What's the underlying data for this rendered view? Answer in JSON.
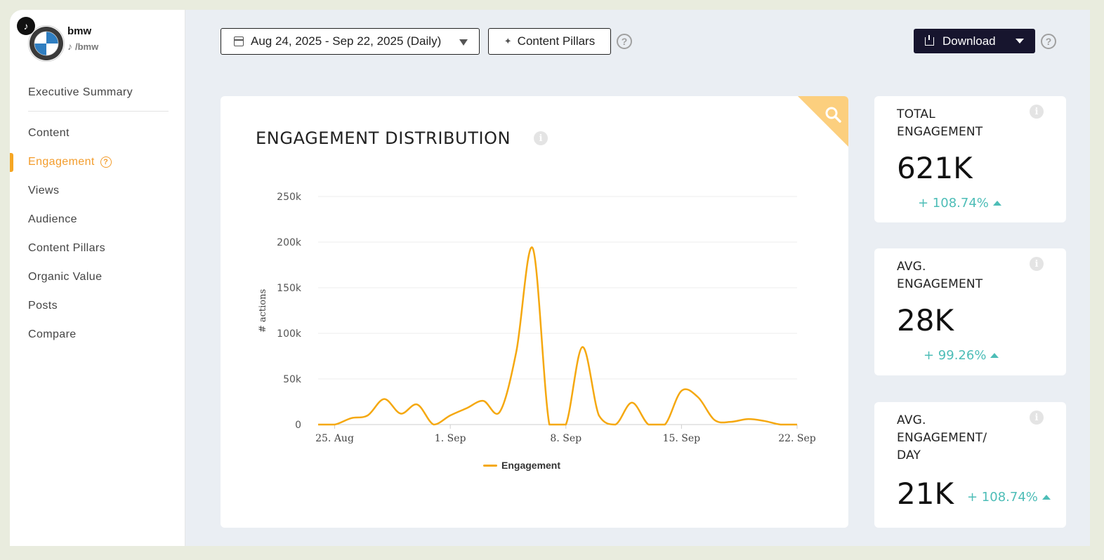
{
  "profile": {
    "name": "bmw",
    "handle": "/bmw",
    "platform_icon": "tiktok-icon"
  },
  "sidebar": {
    "items": [
      {
        "label": "Executive Summary"
      },
      {
        "label": "Content"
      },
      {
        "label": "Engagement",
        "active": true
      },
      {
        "label": "Views"
      },
      {
        "label": "Audience"
      },
      {
        "label": "Content Pillars"
      },
      {
        "label": "Organic Value"
      },
      {
        "label": "Posts"
      },
      {
        "label": "Compare"
      }
    ]
  },
  "toolbar": {
    "date_range": "Aug 24, 2025 - Sep 22, 2025 (Daily)",
    "pillars_label": "Content Pillars",
    "download_label": "Download"
  },
  "chart_title": "ENGAGEMENT DISTRIBUTION",
  "chart_data": {
    "type": "line",
    "title": "ENGAGEMENT DISTRIBUTION",
    "xlabel": "",
    "ylabel": "# actions",
    "x_ticks": [
      "25. Aug",
      "1. Sep",
      "8. Sep",
      "15. Sep",
      "22. Sep"
    ],
    "y_ticks": [
      "0",
      "50k",
      "100k",
      "150k",
      "200k",
      "250k"
    ],
    "ylim": [
      0,
      250000
    ],
    "grid": true,
    "legend": "bottom-center",
    "x": [
      "Aug 24",
      "Aug 25",
      "Aug 26",
      "Aug 27",
      "Aug 28",
      "Aug 29",
      "Aug 30",
      "Aug 31",
      "Sep 1",
      "Sep 2",
      "Sep 3",
      "Sep 4",
      "Sep 5",
      "Sep 6",
      "Sep 7",
      "Sep 8",
      "Sep 9",
      "Sep 10",
      "Sep 11",
      "Sep 12",
      "Sep 13",
      "Sep 14",
      "Sep 15",
      "Sep 16",
      "Sep 17",
      "Sep 18",
      "Sep 19",
      "Sep 20",
      "Sep 21",
      "Sep 22"
    ],
    "series": [
      {
        "name": "Engagement",
        "color": "#f5a80f",
        "values": [
          0,
          0,
          7000,
          10000,
          28000,
          12000,
          22000,
          0,
          10000,
          18000,
          26000,
          14000,
          80000,
          193000,
          0,
          0,
          85000,
          10000,
          0,
          24000,
          0,
          0,
          37000,
          30000,
          5000,
          3000,
          6000,
          4000,
          0,
          0
        ]
      }
    ]
  },
  "kpis": [
    {
      "title": "TOTAL ENGAGEMENT",
      "value": "621K",
      "delta": "+ 108.74%"
    },
    {
      "title": "AVG. ENGAGEMENT",
      "value": "28K",
      "delta": "+ 99.26%"
    },
    {
      "title": "AVG. ENGAGEMENT/ DAY",
      "value": "21K",
      "delta": "+ 108.74%"
    }
  ],
  "colors": {
    "accent": "#f5a623",
    "positive": "#4dbdb7",
    "primary_dark": "#17152e"
  }
}
